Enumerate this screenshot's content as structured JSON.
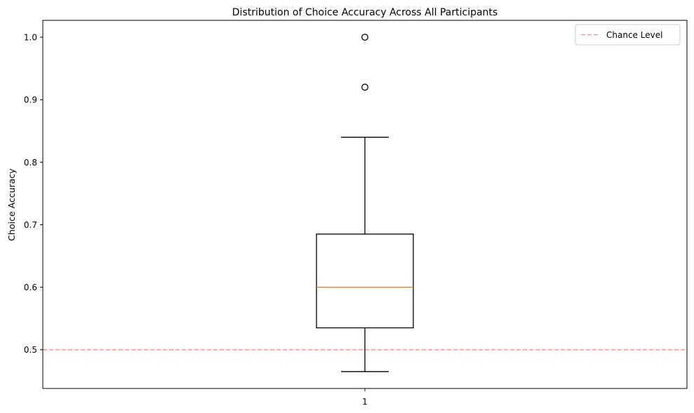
{
  "chart_data": {
    "type": "box",
    "title": "Distribution of Choice Accuracy Across All Participants",
    "xlabel": "",
    "ylabel": "Choice Accuracy",
    "categories": [
      "1"
    ],
    "ylim": [
      0.438,
      1.027
    ],
    "yticks": [
      0.5,
      0.6,
      0.7,
      0.8,
      0.9,
      1.0
    ],
    "ytick_labels": [
      "0.5",
      "0.6",
      "0.7",
      "0.8",
      "0.9",
      "1.0"
    ],
    "grid": false,
    "boxes": [
      {
        "category": "1",
        "whisker_low": 0.465,
        "q1": 0.535,
        "median": 0.6,
        "q3": 0.685,
        "whisker_high": 0.84,
        "outliers": [
          0.92,
          1.0
        ]
      }
    ],
    "reference_lines": [
      {
        "label": "Chance Level",
        "y": 0.5,
        "color": "#ff9999",
        "style": "dashed"
      }
    ],
    "legend": {
      "position": "top-right",
      "entries": [
        "Chance Level"
      ]
    },
    "colors": {
      "box": "#000000",
      "median": "#ff7f0e",
      "chance": "#ff9999"
    }
  }
}
